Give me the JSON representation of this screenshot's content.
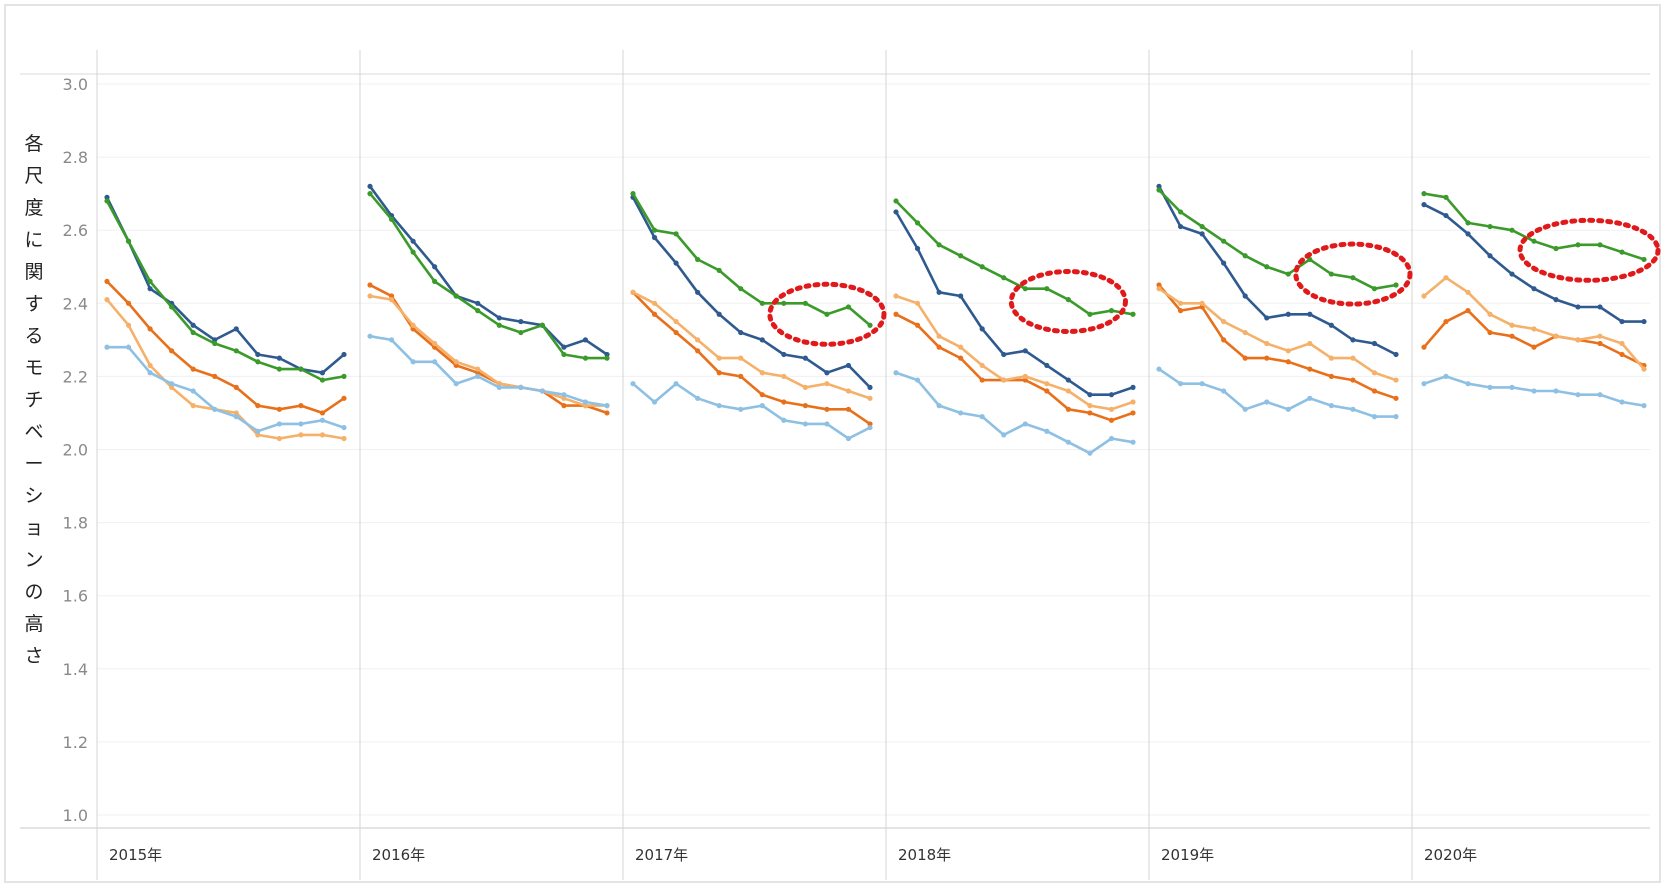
{
  "chart_data": {
    "type": "line",
    "title": "",
    "ylabel": "各尺度に関するモチベーションの高さ",
    "xlabel": "",
    "ylim": [
      1.0,
      3.0
    ],
    "yticks": [
      "3.0",
      "2.8",
      "2.6",
      "2.4",
      "2.2",
      "2.0",
      "1.8",
      "1.6",
      "1.4",
      "1.2",
      "1.0"
    ],
    "grid": true,
    "legend": "none",
    "colors": {
      "dark_blue": "#2e5a8f",
      "green": "#3a9a2a",
      "orange": "#e8701a",
      "light_orange": "#f5b06a",
      "light_blue": "#8ec0e4",
      "highlight": "#e01a1a"
    },
    "panels": [
      {
        "label": "2015年",
        "series": [
          {
            "color": "dark_blue",
            "values": [
              2.69,
              2.57,
              2.44,
              2.4,
              2.34,
              2.3,
              2.33,
              2.26,
              2.25,
              2.22,
              2.21,
              2.26
            ]
          },
          {
            "color": "green",
            "values": [
              2.68,
              2.57,
              2.46,
              2.39,
              2.32,
              2.29,
              2.27,
              2.24,
              2.22,
              2.22,
              2.19,
              2.2
            ]
          },
          {
            "color": "orange",
            "values": [
              2.46,
              2.4,
              2.33,
              2.27,
              2.22,
              2.2,
              2.17,
              2.12,
              2.11,
              2.12,
              2.1,
              2.14
            ]
          },
          {
            "color": "light_orange",
            "values": [
              2.41,
              2.34,
              2.23,
              2.17,
              2.12,
              2.11,
              2.1,
              2.04,
              2.03,
              2.04,
              2.04,
              2.03
            ]
          },
          {
            "color": "light_blue",
            "values": [
              2.28,
              2.28,
              2.21,
              2.18,
              2.16,
              2.11,
              2.09,
              2.05,
              2.07,
              2.07,
              2.08,
              2.06
            ]
          }
        ]
      },
      {
        "label": "2016年",
        "series": [
          {
            "color": "dark_blue",
            "values": [
              2.72,
              2.64,
              2.57,
              2.5,
              2.42,
              2.4,
              2.36,
              2.35,
              2.34,
              2.28,
              2.3,
              2.26
            ]
          },
          {
            "color": "green",
            "values": [
              2.7,
              2.63,
              2.54,
              2.46,
              2.42,
              2.38,
              2.34,
              2.32,
              2.34,
              2.26,
              2.25,
              2.25
            ]
          },
          {
            "color": "orange",
            "values": [
              2.45,
              2.42,
              2.33,
              2.28,
              2.23,
              2.21,
              2.18,
              2.17,
              2.16,
              2.12,
              2.12,
              2.1
            ]
          },
          {
            "color": "light_orange",
            "values": [
              2.42,
              2.41,
              2.34,
              2.29,
              2.24,
              2.22,
              2.18,
              2.17,
              2.16,
              2.14,
              2.12,
              2.12
            ]
          },
          {
            "color": "light_blue",
            "values": [
              2.31,
              2.3,
              2.24,
              2.24,
              2.18,
              2.2,
              2.17,
              2.17,
              2.16,
              2.15,
              2.13,
              2.12
            ]
          }
        ]
      },
      {
        "label": "2017年",
        "series": [
          {
            "color": "dark_blue",
            "values": [
              2.69,
              2.58,
              2.51,
              2.43,
              2.37,
              2.32,
              2.3,
              2.26,
              2.25,
              2.21,
              2.23,
              2.17
            ]
          },
          {
            "color": "green",
            "values": [
              2.7,
              2.6,
              2.59,
              2.52,
              2.49,
              2.44,
              2.4,
              2.4,
              2.4,
              2.37,
              2.39,
              2.34
            ]
          },
          {
            "color": "orange",
            "values": [
              2.43,
              2.37,
              2.32,
              2.27,
              2.21,
              2.2,
              2.15,
              2.13,
              2.12,
              2.11,
              2.11,
              2.07
            ]
          },
          {
            "color": "light_orange",
            "values": [
              2.43,
              2.4,
              2.35,
              2.3,
              2.25,
              2.25,
              2.21,
              2.2,
              2.17,
              2.18,
              2.16,
              2.14
            ]
          },
          {
            "color": "light_blue",
            "values": [
              2.18,
              2.13,
              2.18,
              2.14,
              2.12,
              2.11,
              2.12,
              2.08,
              2.07,
              2.07,
              2.03,
              2.06
            ]
          }
        ]
      },
      {
        "label": "2018年",
        "series": [
          {
            "color": "dark_blue",
            "values": [
              2.65,
              2.55,
              2.43,
              2.42,
              2.33,
              2.26,
              2.27,
              2.23,
              2.19,
              2.15,
              2.15,
              2.17
            ]
          },
          {
            "color": "green",
            "values": [
              2.68,
              2.62,
              2.56,
              2.53,
              2.5,
              2.47,
              2.44,
              2.44,
              2.41,
              2.37,
              2.38,
              2.37
            ]
          },
          {
            "color": "orange",
            "values": [
              2.37,
              2.34,
              2.28,
              2.25,
              2.19,
              2.19,
              2.19,
              2.16,
              2.11,
              2.1,
              2.08,
              2.1
            ]
          },
          {
            "color": "light_orange",
            "values": [
              2.42,
              2.4,
              2.31,
              2.28,
              2.23,
              2.19,
              2.2,
              2.18,
              2.16,
              2.12,
              2.11,
              2.13
            ]
          },
          {
            "color": "light_blue",
            "values": [
              2.21,
              2.19,
              2.12,
              2.1,
              2.09,
              2.04,
              2.07,
              2.05,
              2.02,
              1.99,
              2.03,
              2.02
            ]
          }
        ]
      },
      {
        "label": "2019年",
        "series": [
          {
            "color": "dark_blue",
            "values": [
              2.72,
              2.61,
              2.59,
              2.51,
              2.42,
              2.36,
              2.37,
              2.37,
              2.34,
              2.3,
              2.29,
              2.26
            ]
          },
          {
            "color": "green",
            "values": [
              2.71,
              2.65,
              2.61,
              2.57,
              2.53,
              2.5,
              2.48,
              2.52,
              2.48,
              2.47,
              2.44,
              2.45
            ]
          },
          {
            "color": "orange",
            "values": [
              2.45,
              2.38,
              2.39,
              2.3,
              2.25,
              2.25,
              2.24,
              2.22,
              2.2,
              2.19,
              2.16,
              2.14
            ]
          },
          {
            "color": "light_orange",
            "values": [
              2.44,
              2.4,
              2.4,
              2.35,
              2.32,
              2.29,
              2.27,
              2.29,
              2.25,
              2.25,
              2.21,
              2.19
            ]
          },
          {
            "color": "light_blue",
            "values": [
              2.22,
              2.18,
              2.18,
              2.16,
              2.11,
              2.13,
              2.11,
              2.14,
              2.12,
              2.11,
              2.09,
              2.09
            ]
          }
        ]
      },
      {
        "label": "2020年",
        "series": [
          {
            "color": "dark_blue",
            "values": [
              2.67,
              2.64,
              2.59,
              2.53,
              2.48,
              2.44,
              2.41,
              2.39,
              2.39,
              2.35,
              2.35
            ]
          },
          {
            "color": "green",
            "values": [
              2.7,
              2.69,
              2.62,
              2.61,
              2.6,
              2.57,
              2.55,
              2.56,
              2.56,
              2.54,
              2.52
            ]
          },
          {
            "color": "orange",
            "values": [
              2.28,
              2.35,
              2.38,
              2.32,
              2.31,
              2.28,
              2.31,
              2.3,
              2.29,
              2.26,
              2.23
            ]
          },
          {
            "color": "light_orange",
            "values": [
              2.42,
              2.47,
              2.43,
              2.37,
              2.34,
              2.33,
              2.31,
              2.3,
              2.31,
              2.29,
              2.22
            ]
          },
          {
            "color": "light_blue",
            "values": [
              2.18,
              2.2,
              2.18,
              2.17,
              2.17,
              2.16,
              2.16,
              2.15,
              2.15,
              2.13,
              2.12
            ]
          }
        ]
      }
    ],
    "annotations": [
      {
        "type": "dotted-ellipse",
        "panel": "2017年",
        "series": "green",
        "point_range": [
          7,
          11
        ]
      },
      {
        "type": "dotted-ellipse",
        "panel": "2018年",
        "series": "green",
        "point_range": [
          6,
          10
        ]
      },
      {
        "type": "dotted-ellipse",
        "panel": "2019年",
        "series": "green",
        "point_range": [
          7,
          11
        ]
      },
      {
        "type": "dotted-ellipse",
        "panel": "2020年",
        "series": "green",
        "point_range": [
          5,
          10
        ]
      }
    ]
  }
}
